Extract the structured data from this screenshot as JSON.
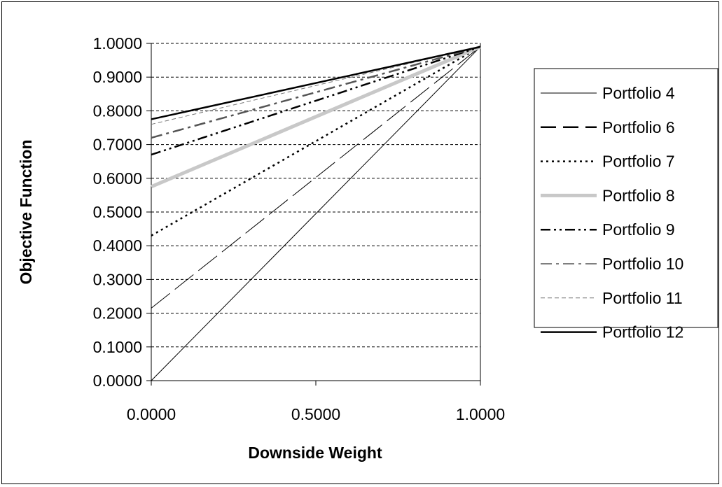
{
  "chart_data": {
    "type": "line",
    "xlabel": "Downside Weight",
    "ylabel": "Objective Function",
    "xlim": [
      0,
      1
    ],
    "ylim": [
      0,
      1
    ],
    "x_ticks": [
      "0.0000",
      "0.5000",
      "1.0000"
    ],
    "y_ticks": [
      "0.0000",
      "0.1000",
      "0.2000",
      "0.3000",
      "0.4000",
      "0.5000",
      "0.6000",
      "0.7000",
      "0.8000",
      "0.9000",
      "1.0000"
    ],
    "grid": "horizontal dashed",
    "legend_position": "right",
    "x": [
      0,
      1
    ],
    "series": [
      {
        "name": "Portfolio 4",
        "values": [
          0.0,
          0.99
        ],
        "style": "solid-thin",
        "color": "#000000"
      },
      {
        "name": "Portfolio 6",
        "values": [
          0.215,
          0.99
        ],
        "style": "long-dash",
        "color": "#000000"
      },
      {
        "name": "Portfolio 7",
        "values": [
          0.43,
          0.99
        ],
        "style": "dotted",
        "color": "#000000"
      },
      {
        "name": "Portfolio 8",
        "values": [
          0.575,
          0.99
        ],
        "style": "solid-gray-thick",
        "color": "#c8c8c8"
      },
      {
        "name": "Portfolio 9",
        "values": [
          0.67,
          0.99
        ],
        "style": "dash-dot-dot",
        "color": "#000000"
      },
      {
        "name": "Portfolio 10",
        "values": [
          0.72,
          0.99
        ],
        "style": "dash-dot",
        "color": "#555555"
      },
      {
        "name": "Portfolio 11",
        "values": [
          0.76,
          0.99
        ],
        "style": "short-dash",
        "color": "#777777"
      },
      {
        "name": "Portfolio 12",
        "values": [
          0.775,
          0.99
        ],
        "style": "solid-thick",
        "color": "#000000"
      }
    ]
  }
}
